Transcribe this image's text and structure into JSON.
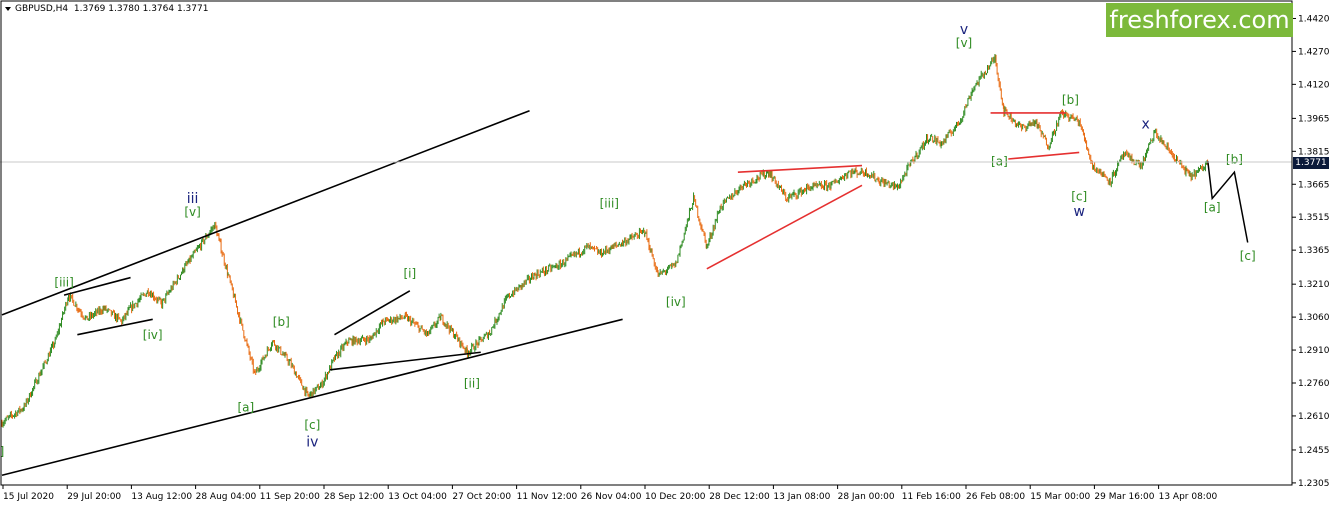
{
  "header": {
    "symbol": "GBPUSD,H4",
    "ohlc": "1.3769 1.3780 1.3764 1.3771"
  },
  "logo": {
    "text": "freshforex.com",
    "color": "#7cb93b"
  },
  "colors": {
    "bull": "#2e8b22",
    "bear": "#e86a10",
    "trendline": "#000000",
    "triangle": "#e53030",
    "wave_green": "#2e8b22",
    "wave_blue": "#1a237e"
  },
  "chart_data": {
    "type": "line",
    "title": "",
    "xlabel": "",
    "ylabel": "",
    "ylim": [
      1.23,
      1.4495
    ],
    "y_ticks": [
      1.2305,
      1.2455,
      1.261,
      1.276,
      1.291,
      1.306,
      1.321,
      1.3365,
      1.3515,
      1.3665,
      1.3815,
      1.3965,
      1.412,
      1.427,
      1.442
    ],
    "y_tick_labels": [
      "1.2305",
      "1.2455",
      "1.2610",
      "1.2760",
      "1.2910",
      "1.3060",
      "1.3210",
      "1.3365",
      "1.3515",
      "1.3665",
      "1.3815",
      "1.3965",
      "1.4120",
      "1.4270",
      "1.4420"
    ],
    "current_price": 1.3771,
    "current_price_label": "1.3771",
    "x_tick_labels": [
      "15 Jul 2020",
      "29 Jul 20:00",
      "13 Aug 12:00",
      "28 Aug 04:00",
      "11 Sep 20:00",
      "28 Sep 12:00",
      "13 Oct 04:00",
      "27 Oct 20:00",
      "11 Nov 12:00",
      "26 Nov 04:00",
      "10 Dec 20:00",
      "28 Dec 12:00",
      "13 Jan 08:00",
      "28 Jan 00:00",
      "11 Feb 16:00",
      "26 Feb 08:00",
      "15 Mar 00:00",
      "29 Mar 16:00",
      "13 Apr 08:00"
    ],
    "series": [
      {
        "x": [
          "15 Jul 2020",
          "20 Jul 2020",
          "27 Jul 2020",
          "30 Jul 2020",
          "3 Aug 2020",
          "7 Aug 2020",
          "11 Aug 2020",
          "13 Aug 2020",
          "17 Aug 2020",
          "20 Aug 2020",
          "25 Aug 2020",
          "1 Sep 2020",
          "4 Sep 2020",
          "10 Sep 2020",
          "14 Sep 2020",
          "18 Sep 2020",
          "22 Sep 2020",
          "25 Sep 2020",
          "28 Sep 2020",
          "1 Oct 2020",
          "6 Oct 2020",
          "9 Oct 2020",
          "14 Oct 2020",
          "19 Oct 2020",
          "22 Oct 2020",
          "28 Oct 2020",
          "2 Nov 2020",
          "6 Nov 2020",
          "12 Nov 2020",
          "18 Nov 2020",
          "24 Nov 2020",
          "27 Nov 2020",
          "2 Dec 2020",
          "7 Dec 2020",
          "10 Dec 2020",
          "14 Dec 2020",
          "18 Dec 2020",
          "21 Dec 2020",
          "24 Dec 2020",
          "29 Dec 2020",
          "4 Jan 2021",
          "8 Jan 2021",
          "13 Jan 2021",
          "18 Jan 2021",
          "22 Jan 2021",
          "26 Jan 2021",
          "29 Jan 2021",
          "2 Feb 2021",
          "5 Feb 2021",
          "9 Feb 2021",
          "12 Feb 2021",
          "16 Feb 2021",
          "19 Feb 2021",
          "24 Feb 2021",
          "26 Feb 2021",
          "2 Mar 2021",
          "5 Mar 2021",
          "8 Mar 2021",
          "11 Mar 2021",
          "15 Mar 2021",
          "18 Mar 2021",
          "22 Mar 2021",
          "25 Mar 2021",
          "29 Mar 2021",
          "1 Apr 2021",
          "5 Apr 2021",
          "9 Apr 2021",
          "12 Apr 2021",
          "13 Apr 2021"
        ],
        "values": [
          1.258,
          1.265,
          1.295,
          1.316,
          1.305,
          1.31,
          1.304,
          1.31,
          1.318,
          1.312,
          1.328,
          1.348,
          1.325,
          1.28,
          1.295,
          1.285,
          1.27,
          1.275,
          1.287,
          1.295,
          1.296,
          1.304,
          1.306,
          1.298,
          1.306,
          1.29,
          1.299,
          1.315,
          1.325,
          1.33,
          1.338,
          1.335,
          1.34,
          1.345,
          1.325,
          1.33,
          1.36,
          1.338,
          1.356,
          1.366,
          1.372,
          1.36,
          1.365,
          1.366,
          1.372,
          1.372,
          1.368,
          1.365,
          1.376,
          1.388,
          1.385,
          1.395,
          1.41,
          1.424,
          1.4,
          1.392,
          1.395,
          1.384,
          1.399,
          1.395,
          1.375,
          1.368,
          1.38,
          1.375,
          1.39,
          1.38,
          1.37,
          1.374,
          1.3771
        ]
      }
    ],
    "forecast": [
      {
        "x": "13 Apr 2021",
        "y": 1.3771
      },
      {
        "x": "14 Apr 2021",
        "y": 1.36
      },
      {
        "x": "19 Apr 2021",
        "y": 1.372
      },
      {
        "x": "22 Apr 2021",
        "y": 1.34
      }
    ],
    "trendlines": [
      {
        "name": "channel-upper",
        "color": "#000000",
        "x1": "15 Jul 2020",
        "y1": 1.307,
        "x2": "11 Nov 2020",
        "y2": 1.4
      },
      {
        "name": "channel-lower",
        "color": "#000000",
        "x1": "15 Jul 2020",
        "y1": 1.234,
        "x2": "2 Dec 2020",
        "y2": 1.305
      },
      {
        "name": "wedge1-upper",
        "color": "#000000",
        "x1": "29 Jul 2020",
        "y1": 1.316,
        "x2": "13 Aug 2020",
        "y2": 1.324
      },
      {
        "name": "wedge1-lower",
        "color": "#000000",
        "x1": "1 Aug 2020",
        "y1": 1.298,
        "x2": "18 Aug 2020",
        "y2": 1.305
      },
      {
        "name": "wedge2-upper",
        "color": "#000000",
        "x1": "28 Sep 2020",
        "y1": 1.298,
        "x2": "15 Oct 2020",
        "y2": 1.318
      },
      {
        "name": "wedge2-lower",
        "color": "#000000",
        "x1": "27 Sep 2020",
        "y1": 1.282,
        "x2": "31 Oct 2020",
        "y2": 1.29
      },
      {
        "name": "triangle1-upper",
        "color": "#e53030",
        "x1": "28 Dec 2020",
        "y1": 1.372,
        "x2": "25 Jan 2021",
        "y2": 1.375
      },
      {
        "name": "triangle1-lower",
        "color": "#e53030",
        "x1": "21 Dec 2020",
        "y1": 1.328,
        "x2": "25 Jan 2021",
        "y2": 1.366
      },
      {
        "name": "triangle2-upper",
        "color": "#e53030",
        "x1": "23 Feb 2021",
        "y1": 1.399,
        "x2": "12 Mar 2021",
        "y2": 1.399
      },
      {
        "name": "triangle2-lower",
        "color": "#e53030",
        "x1": "27 Feb 2021",
        "y1": 1.378,
        "x2": "15 Mar 2021",
        "y2": 1.381
      }
    ],
    "annotations": [
      {
        "text": "]",
        "style": "green",
        "x": "15 Jul 2020",
        "y": 1.243
      },
      {
        "text": "[iii]",
        "style": "green",
        "x": "29 Jul 2020",
        "y": 1.32
      },
      {
        "text": "[iv]",
        "style": "green",
        "x": "18 Aug 2020",
        "y": 1.296
      },
      {
        "text": "iii",
        "style": "blue",
        "x": "27 Aug 2020",
        "y": 1.358
      },
      {
        "text": "[v]",
        "style": "green",
        "x": "27 Aug 2020",
        "y": 1.352
      },
      {
        "text": "[a]",
        "style": "green",
        "x": "8 Sep 2020",
        "y": 1.263
      },
      {
        "text": "[b]",
        "style": "green",
        "x": "16 Sep 2020",
        "y": 1.302
      },
      {
        "text": "[c]",
        "style": "green",
        "x": "23 Sep 2020",
        "y": 1.255
      },
      {
        "text": "iv",
        "style": "blue",
        "x": "23 Sep 2020",
        "y": 1.247
      },
      {
        "text": "[i]",
        "style": "green",
        "x": "15 Oct 2020",
        "y": 1.324
      },
      {
        "text": "[ii]",
        "style": "green",
        "x": "29 Oct 2020",
        "y": 1.274
      },
      {
        "text": "[iii]",
        "style": "green",
        "x": "29 Nov 2020",
        "y": 1.356
      },
      {
        "text": "[iv]",
        "style": "green",
        "x": "14 Dec 2020",
        "y": 1.311
      },
      {
        "text": "v",
        "style": "blue",
        "x": "17 Feb 2021",
        "y": 1.435
      },
      {
        "text": "[v]",
        "style": "green",
        "x": "17 Feb 2021",
        "y": 1.429
      },
      {
        "text": "[b]",
        "style": "green",
        "x": "13 Mar 2021",
        "y": 1.403
      },
      {
        "text": "[a]",
        "style": "green",
        "x": "25 Feb 2021",
        "y": 1.375
      },
      {
        "text": "[c]",
        "style": "green",
        "x": "15 Mar 2021",
        "y": 1.359
      },
      {
        "text": "w",
        "style": "blue",
        "x": "15 Mar 2021",
        "y": 1.352
      },
      {
        "text": "x",
        "style": "blue",
        "x": "30 Mar 2021",
        "y": 1.392
      },
      {
        "text": "[a]",
        "style": "green",
        "x": "14 Apr 2021",
        "y": 1.354
      },
      {
        "text": "[b]",
        "style": "green",
        "x": "19 Apr 2021",
        "y": 1.376
      },
      {
        "text": "[c]",
        "style": "green",
        "x": "22 Apr 2021",
        "y": 1.332
      }
    ],
    "grid": false,
    "legend": "none"
  }
}
